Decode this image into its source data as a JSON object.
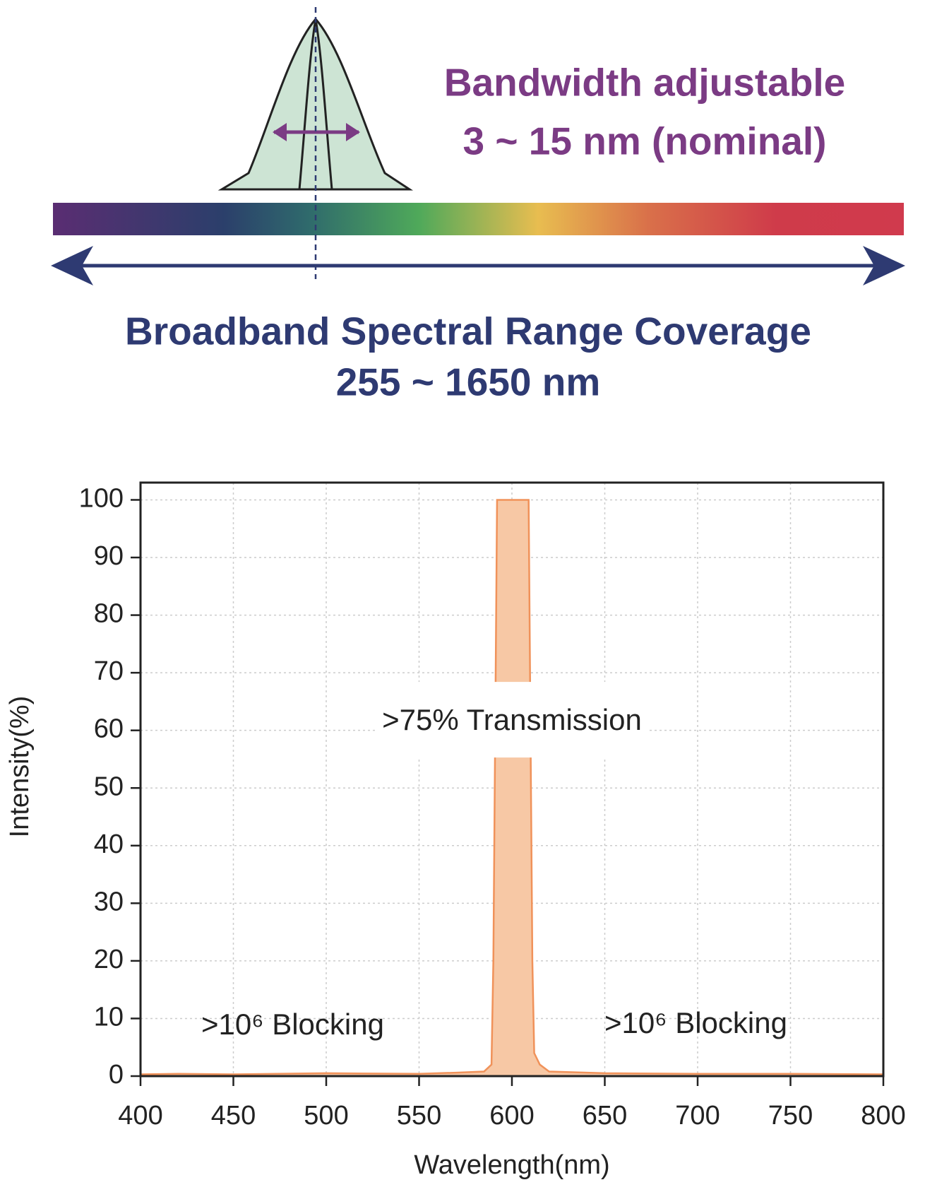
{
  "diagram": {
    "bandwidth_title": "Bandwidth adjustable",
    "bandwidth_range": "3 ~ 15 nm (nominal)",
    "coverage_title": "Broadband Spectral Range Coverage",
    "coverage_range": "255 ~ 1650 nm"
  },
  "chart_data": {
    "type": "area",
    "x_label": "Wavelength(nm)",
    "y_label": "Intensity(%)",
    "x": [
      400,
      420,
      450,
      500,
      550,
      570,
      585,
      589,
      590,
      591,
      592,
      600,
      609,
      610,
      611,
      612,
      615,
      620,
      650,
      700,
      750,
      800
    ],
    "series": [
      {
        "name": "Transmission",
        "color": "#f0925a",
        "fill": "#f7c8a5",
        "values": [
          0.3,
          0.4,
          0.3,
          0.5,
          0.4,
          0.6,
          0.8,
          2,
          20,
          60,
          100,
          100,
          100,
          60,
          20,
          4,
          2,
          0.8,
          0.5,
          0.4,
          0.4,
          0.3
        ]
      }
    ],
    "xlim": [
      400,
      800
    ],
    "ylim": [
      0,
      103
    ],
    "xticks": [
      400,
      450,
      500,
      550,
      600,
      650,
      700,
      750,
      800
    ],
    "yticks": [
      0,
      10,
      20,
      30,
      40,
      50,
      60,
      70,
      80,
      90,
      100
    ],
    "grid": true,
    "annotations": [
      ">75% Transmission",
      ">10⁶ Blocking",
      ">10⁶ Blocking"
    ]
  }
}
